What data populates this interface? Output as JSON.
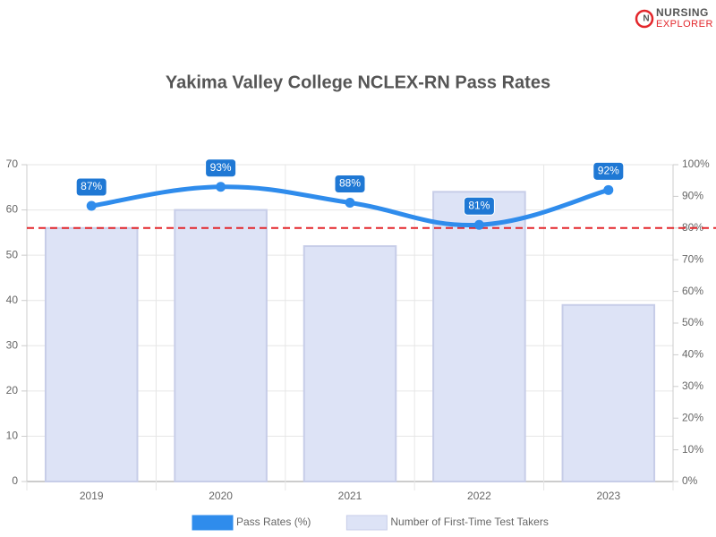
{
  "brand": {
    "line1": "NURSING",
    "line2": "EXPLORER"
  },
  "chart_data": {
    "type": "bar-line",
    "title": "Yakima Valley College NCLEX-RN Pass Rates",
    "categories": [
      "2019",
      "2020",
      "2021",
      "2022",
      "2023"
    ],
    "series": [
      {
        "name": "Pass Rates (%)",
        "type": "line",
        "axis": "y2",
        "color": "#2f8cec",
        "values": [
          87,
          93,
          88,
          81,
          92
        ],
        "value_labels": [
          "87%",
          "93%",
          "88%",
          "81%",
          "92%"
        ]
      },
      {
        "name": "Number of First-Time Test Takers",
        "type": "bar",
        "axis": "y",
        "color": "#dde3f6",
        "values": [
          56,
          60,
          52,
          64,
          39
        ]
      }
    ],
    "ylim": [
      0,
      70
    ],
    "yticks": [
      0,
      10,
      20,
      30,
      40,
      50,
      60,
      70
    ],
    "y2lim": [
      0,
      100
    ],
    "y2ticks": [
      {
        "value": 0,
        "label": "0%"
      },
      {
        "value": 10,
        "label": "10%"
      },
      {
        "value": 20,
        "label": "20%"
      },
      {
        "value": 30,
        "label": "30%"
      },
      {
        "value": 40,
        "label": "40%"
      },
      {
        "value": 50,
        "label": "50%"
      },
      {
        "value": 60,
        "label": "60%"
      },
      {
        "value": 70,
        "label": "70%"
      },
      {
        "value": 80,
        "label": "80%"
      },
      {
        "value": 90,
        "label": "90%"
      },
      {
        "value": 100,
        "label": "100%"
      }
    ],
    "reference_line": {
      "value": 80,
      "axis": "y2",
      "color": "#e3262b"
    },
    "grid": true,
    "legend": "bottom"
  }
}
